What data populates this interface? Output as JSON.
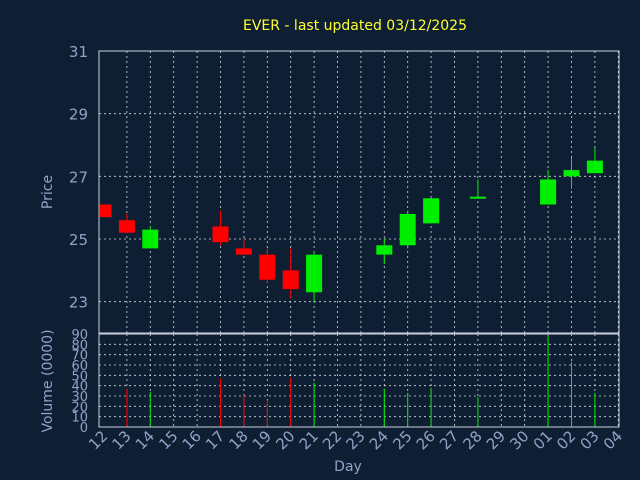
{
  "chart_data": {
    "type": "candlestick",
    "title": "EVER - last updated 03/12/2025",
    "xlabel": "Day",
    "price_ylabel": "Price",
    "volume_ylabel": "Volume (0000)",
    "x_ticks": [
      "12",
      "13",
      "14",
      "15",
      "16",
      "17",
      "18",
      "19",
      "20",
      "21",
      "22",
      "23",
      "24",
      "25",
      "26",
      "27",
      "28",
      "29",
      "30",
      "01",
      "02",
      "03",
      "04"
    ],
    "price_ylim": [
      22,
      31
    ],
    "price_ticks": [
      31,
      29,
      27,
      25,
      23
    ],
    "volume_ylim": [
      0,
      90
    ],
    "volume_ticks": [
      90,
      80,
      70,
      60,
      50,
      40,
      30,
      20,
      10,
      0
    ],
    "grid": true,
    "colors": {
      "up": "#00ee00",
      "down": "#ff0000",
      "title": "#ffff33",
      "axis_text": "#8fa3c8",
      "background": "#0f1f33"
    },
    "candles": [
      {
        "day": "12",
        "open": 26.1,
        "high": 26.1,
        "low": 25.7,
        "close": 25.7,
        "volume": 0
      },
      {
        "day": "13",
        "open": 25.6,
        "high": 25.8,
        "low": 25.2,
        "close": 25.2,
        "volume": 37
      },
      {
        "day": "14",
        "open": 24.7,
        "high": 25.4,
        "low": 24.7,
        "close": 25.3,
        "volume": 34
      },
      {
        "day": "17",
        "open": 25.4,
        "high": 25.9,
        "low": 24.8,
        "close": 24.9,
        "volume": 47
      },
      {
        "day": "18",
        "open": 24.7,
        "high": 25.0,
        "low": 24.5,
        "close": 24.5,
        "volume": 31
      },
      {
        "day": "19",
        "open": 24.5,
        "high": 24.7,
        "low": 23.6,
        "close": 23.7,
        "volume": 26
      },
      {
        "day": "20",
        "open": 24.0,
        "high": 24.7,
        "low": 23.1,
        "close": 23.4,
        "volume": 48
      },
      {
        "day": "21",
        "open": 23.3,
        "high": 24.6,
        "low": 23.0,
        "close": 24.5,
        "volume": 43
      },
      {
        "day": "24",
        "open": 24.5,
        "high": 25.0,
        "low": 24.2,
        "close": 24.8,
        "volume": 37
      },
      {
        "day": "25",
        "open": 24.8,
        "high": 25.9,
        "low": 24.7,
        "close": 25.8,
        "volume": 33
      },
      {
        "day": "26",
        "open": 25.5,
        "high": 26.3,
        "low": 25.5,
        "close": 26.3,
        "volume": 38
      },
      {
        "day": "28",
        "open": 26.35,
        "high": 26.9,
        "low": 26.3,
        "close": 26.35,
        "volume": 29
      },
      {
        "day": "01",
        "open": 26.1,
        "high": 27.2,
        "low": 26.1,
        "close": 26.9,
        "volume": 88
      },
      {
        "day": "02",
        "open": 27.0,
        "high": 27.6,
        "low": 26.6,
        "close": 27.2,
        "volume": 63
      },
      {
        "day": "03",
        "open": 27.1,
        "high": 27.9,
        "low": 27.1,
        "close": 27.5,
        "volume": 33
      }
    ]
  }
}
